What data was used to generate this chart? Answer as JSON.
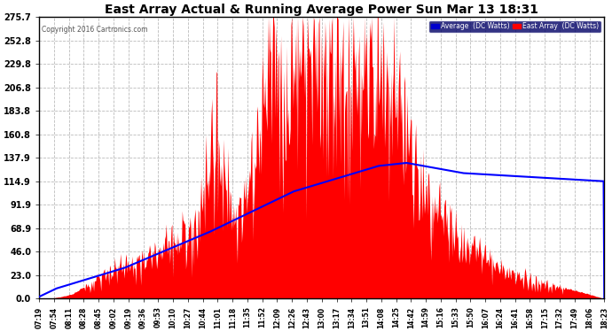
{
  "title": "East Array Actual & Running Average Power Sun Mar 13 18:31",
  "copyright": "Copyright 2016 Cartronics.com",
  "legend_avg": "Average  (DC Watts)",
  "legend_east": "East Array  (DC Watts)",
  "bg_color": "#ffffff",
  "plot_bg_color": "#ffffff",
  "grid_color": "#aaaaaa",
  "red_color": "#ff0000",
  "blue_color": "#0000ff",
  "title_color": "#000000",
  "ylabel_color": "#000000",
  "xlabel_color": "#000000",
  "yticks": [
    0.0,
    23.0,
    46.0,
    68.9,
    91.9,
    114.9,
    137.9,
    160.8,
    183.8,
    206.8,
    229.8,
    252.8,
    275.7
  ],
  "xtick_labels": [
    "07:19",
    "07:54",
    "08:11",
    "08:28",
    "08:45",
    "09:02",
    "09:19",
    "09:36",
    "09:53",
    "10:10",
    "10:27",
    "10:44",
    "11:01",
    "11:18",
    "11:35",
    "11:52",
    "12:09",
    "12:26",
    "12:43",
    "13:00",
    "13:17",
    "13:34",
    "13:51",
    "14:08",
    "14:25",
    "14:42",
    "14:59",
    "15:16",
    "15:33",
    "15:50",
    "16:07",
    "16:24",
    "16:41",
    "16:58",
    "17:15",
    "17:32",
    "17:49",
    "18:06",
    "18:23"
  ],
  "ymax": 275.7,
  "ymin": 0.0
}
